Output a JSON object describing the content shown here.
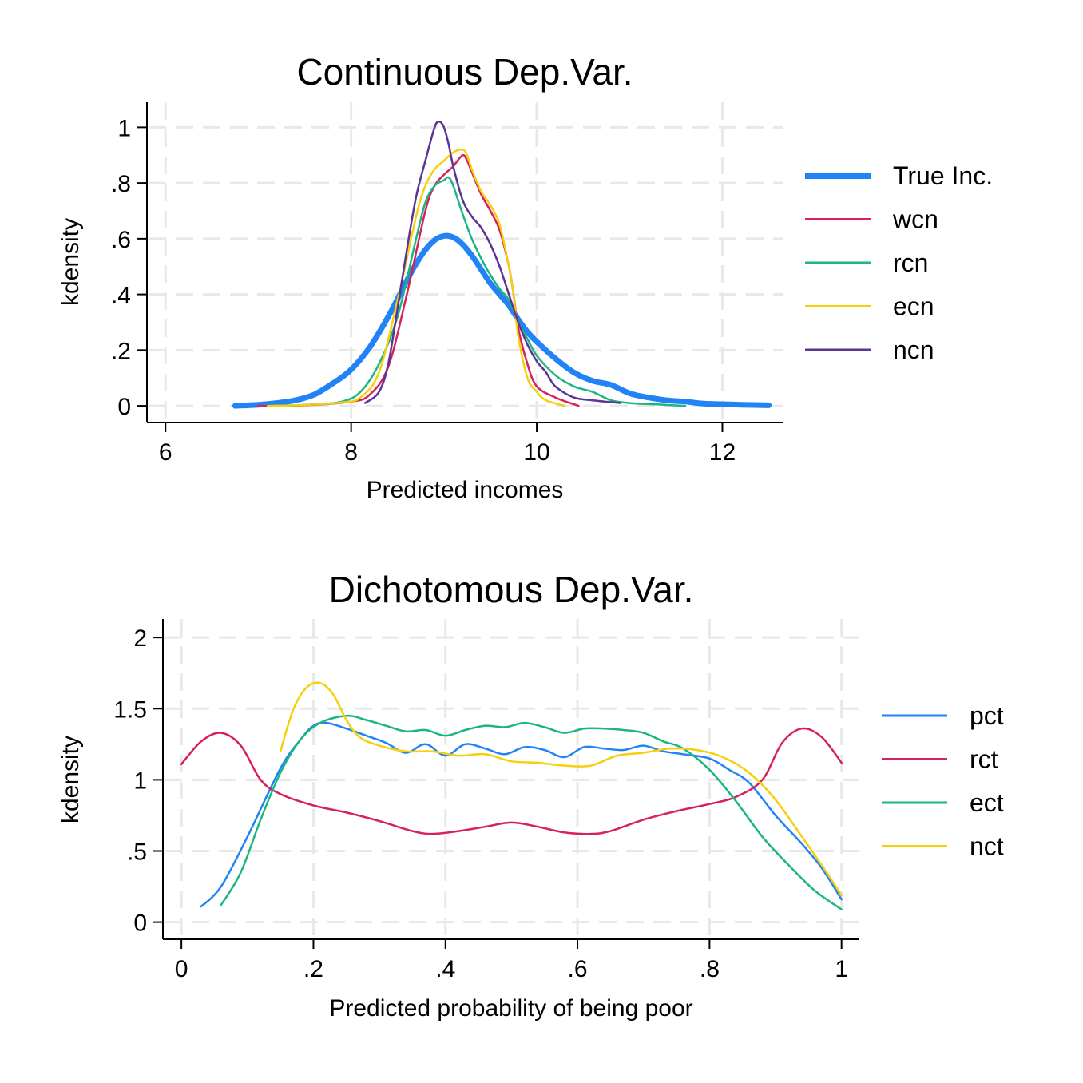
{
  "chart_data": [
    {
      "type": "line",
      "title": "Continuous Dep.Var.",
      "xlabel": "Predicted incomes",
      "ylabel": "kdensity",
      "xlim": [
        5.8,
        12.65
      ],
      "ylim": [
        -0.06,
        1.09
      ],
      "xticks": [
        6,
        8,
        10,
        12
      ],
      "xtick_labels": [
        "6",
        "8",
        "10",
        "12"
      ],
      "yticks": [
        0,
        0.2,
        0.4,
        0.6,
        0.8,
        1
      ],
      "ytick_labels": [
        "0",
        ".2",
        ".4",
        ".6",
        ".8",
        "1"
      ],
      "grid": true,
      "legend_position": "right",
      "series": [
        {
          "name": "True Inc.",
          "color": "#2183f5",
          "width": 7,
          "x": [
            6.75,
            7.0,
            7.2,
            7.4,
            7.6,
            7.8,
            8.0,
            8.2,
            8.4,
            8.6,
            8.7,
            8.8,
            8.9,
            9.0,
            9.1,
            9.2,
            9.3,
            9.4,
            9.5,
            9.6,
            9.7,
            9.8,
            9.9,
            10.0,
            10.2,
            10.4,
            10.6,
            10.8,
            11.0,
            11.2,
            11.4,
            11.6,
            11.8,
            12.0,
            12.2,
            12.5
          ],
          "y": [
            0.0,
            0.004,
            0.01,
            0.02,
            0.04,
            0.08,
            0.13,
            0.21,
            0.32,
            0.45,
            0.51,
            0.56,
            0.595,
            0.61,
            0.605,
            0.58,
            0.54,
            0.49,
            0.44,
            0.4,
            0.36,
            0.31,
            0.265,
            0.23,
            0.17,
            0.12,
            0.09,
            0.075,
            0.045,
            0.03,
            0.02,
            0.015,
            0.008,
            0.006,
            0.004,
            0.002
          ]
        },
        {
          "name": "wcn",
          "color": "#d6215c",
          "width": 2.5,
          "x": [
            7.0,
            7.5,
            8.0,
            8.2,
            8.4,
            8.6,
            8.8,
            8.9,
            9.0,
            9.1,
            9.2,
            9.25,
            9.3,
            9.4,
            9.5,
            9.6,
            9.7,
            9.75,
            9.8,
            9.9,
            10.0,
            10.2,
            10.45
          ],
          "y": [
            0.0,
            0.002,
            0.015,
            0.04,
            0.14,
            0.4,
            0.7,
            0.79,
            0.83,
            0.86,
            0.9,
            0.88,
            0.84,
            0.76,
            0.7,
            0.63,
            0.5,
            0.4,
            0.28,
            0.15,
            0.07,
            0.03,
            0.0
          ]
        },
        {
          "name": "rcn",
          "color": "#1db582",
          "width": 2.5,
          "x": [
            7.2,
            7.6,
            7.9,
            8.1,
            8.3,
            8.5,
            8.7,
            8.8,
            8.9,
            9.0,
            9.05,
            9.1,
            9.2,
            9.3,
            9.4,
            9.5,
            9.6,
            9.7,
            9.8,
            9.9,
            10.0,
            10.2,
            10.4,
            10.6,
            10.8,
            11.0,
            11.3,
            11.6
          ],
          "y": [
            0.0,
            0.005,
            0.015,
            0.05,
            0.15,
            0.32,
            0.6,
            0.73,
            0.79,
            0.81,
            0.82,
            0.79,
            0.69,
            0.6,
            0.53,
            0.47,
            0.42,
            0.38,
            0.3,
            0.24,
            0.18,
            0.11,
            0.07,
            0.05,
            0.02,
            0.01,
            0.005,
            0.0
          ]
        },
        {
          "name": "ecn",
          "color": "#f6cf0d",
          "width": 2.5,
          "x": [
            7.1,
            7.5,
            7.9,
            8.1,
            8.3,
            8.5,
            8.7,
            8.8,
            8.9,
            9.0,
            9.1,
            9.2,
            9.25,
            9.3,
            9.4,
            9.5,
            9.6,
            9.7,
            9.75,
            9.8,
            9.9,
            10.0,
            10.1,
            10.3
          ],
          "y": [
            0.0,
            0.003,
            0.012,
            0.03,
            0.12,
            0.38,
            0.68,
            0.79,
            0.85,
            0.88,
            0.91,
            0.92,
            0.9,
            0.85,
            0.77,
            0.72,
            0.65,
            0.5,
            0.4,
            0.25,
            0.1,
            0.05,
            0.02,
            0.0
          ]
        },
        {
          "name": "ncn",
          "color": "#5b3494",
          "width": 2.5,
          "x": [
            8.15,
            8.3,
            8.4,
            8.5,
            8.6,
            8.7,
            8.8,
            8.9,
            8.95,
            9.0,
            9.05,
            9.1,
            9.2,
            9.3,
            9.4,
            9.5,
            9.6,
            9.7,
            9.8,
            9.9,
            10.0,
            10.1,
            10.2,
            10.4,
            10.6,
            10.9
          ],
          "y": [
            0.01,
            0.05,
            0.15,
            0.35,
            0.56,
            0.75,
            0.88,
            1.0,
            1.02,
            1.0,
            0.94,
            0.86,
            0.74,
            0.68,
            0.64,
            0.58,
            0.5,
            0.4,
            0.3,
            0.22,
            0.16,
            0.12,
            0.07,
            0.03,
            0.02,
            0.01
          ]
        }
      ],
      "legend": [
        "True Inc.",
        "wcn",
        "rcn",
        "ecn",
        "ncn"
      ]
    },
    {
      "type": "line",
      "title": "Dichotomous Dep.Var.",
      "xlabel": "Predicted probability of being poor",
      "ylabel": "kdensity",
      "xlim": [
        -0.028,
        1.027
      ],
      "ylim": [
        -0.12,
        2.13
      ],
      "xticks": [
        0,
        0.2,
        0.4,
        0.6,
        0.8,
        1
      ],
      "xtick_labels": [
        "0",
        ".2",
        ".4",
        ".6",
        ".8",
        "1"
      ],
      "yticks": [
        0,
        0.5,
        1,
        1.5,
        2
      ],
      "ytick_labels": [
        "0",
        ".5",
        "1",
        "1.5",
        "2"
      ],
      "grid": true,
      "legend_position": "right",
      "series": [
        {
          "name": "pct",
          "color": "#2183f5",
          "width": 2.5,
          "x": [
            0.03,
            0.06,
            0.1,
            0.15,
            0.18,
            0.2,
            0.22,
            0.25,
            0.28,
            0.31,
            0.34,
            0.37,
            0.4,
            0.43,
            0.46,
            0.49,
            0.52,
            0.55,
            0.58,
            0.61,
            0.64,
            0.67,
            0.7,
            0.73,
            0.76,
            0.8,
            0.83,
            0.86,
            0.9,
            0.94,
            0.97,
            1.0
          ],
          "y": [
            0.11,
            0.25,
            0.6,
            1.08,
            1.28,
            1.38,
            1.4,
            1.36,
            1.31,
            1.26,
            1.19,
            1.25,
            1.17,
            1.25,
            1.22,
            1.18,
            1.23,
            1.21,
            1.16,
            1.23,
            1.22,
            1.21,
            1.24,
            1.2,
            1.18,
            1.15,
            1.07,
            0.98,
            0.75,
            0.55,
            0.38,
            0.16
          ]
        },
        {
          "name": "rct",
          "color": "#d6215c",
          "width": 2.5,
          "x": [
            0.0,
            0.03,
            0.06,
            0.09,
            0.12,
            0.15,
            0.2,
            0.25,
            0.3,
            0.35,
            0.38,
            0.42,
            0.46,
            0.5,
            0.54,
            0.58,
            0.62,
            0.65,
            0.7,
            0.75,
            0.8,
            0.84,
            0.88,
            0.91,
            0.94,
            0.97,
            1.0
          ],
          "y": [
            1.11,
            1.27,
            1.33,
            1.24,
            1.0,
            0.9,
            0.82,
            0.77,
            0.71,
            0.64,
            0.62,
            0.64,
            0.67,
            0.7,
            0.67,
            0.63,
            0.62,
            0.64,
            0.72,
            0.78,
            0.83,
            0.88,
            1.0,
            1.26,
            1.36,
            1.3,
            1.12
          ]
        },
        {
          "name": "ect",
          "color": "#1db582",
          "width": 2.5,
          "x": [
            0.06,
            0.09,
            0.12,
            0.15,
            0.18,
            0.21,
            0.25,
            0.28,
            0.31,
            0.34,
            0.37,
            0.4,
            0.43,
            0.46,
            0.49,
            0.52,
            0.55,
            0.58,
            0.61,
            0.64,
            0.67,
            0.7,
            0.73,
            0.76,
            0.8,
            0.84,
            0.88,
            0.92,
            0.96,
            1.0
          ],
          "y": [
            0.12,
            0.35,
            0.72,
            1.05,
            1.28,
            1.4,
            1.45,
            1.42,
            1.38,
            1.34,
            1.35,
            1.31,
            1.35,
            1.38,
            1.37,
            1.4,
            1.37,
            1.33,
            1.36,
            1.36,
            1.35,
            1.33,
            1.27,
            1.22,
            1.07,
            0.85,
            0.6,
            0.4,
            0.22,
            0.09
          ]
        },
        {
          "name": "nct",
          "color": "#f6cf0d",
          "width": 2.5,
          "x": [
            0.15,
            0.17,
            0.19,
            0.21,
            0.23,
            0.25,
            0.27,
            0.3,
            0.34,
            0.38,
            0.42,
            0.46,
            0.5,
            0.54,
            0.58,
            0.62,
            0.66,
            0.7,
            0.74,
            0.78,
            0.82,
            0.86,
            0.9,
            0.94,
            0.97,
            1.0
          ],
          "y": [
            1.2,
            1.5,
            1.65,
            1.68,
            1.6,
            1.42,
            1.3,
            1.24,
            1.2,
            1.2,
            1.17,
            1.18,
            1.13,
            1.12,
            1.1,
            1.1,
            1.17,
            1.19,
            1.22,
            1.21,
            1.16,
            1.05,
            0.86,
            0.6,
            0.4,
            0.19
          ]
        }
      ],
      "legend": [
        "pct",
        "rct",
        "ect",
        "nct"
      ]
    }
  ]
}
